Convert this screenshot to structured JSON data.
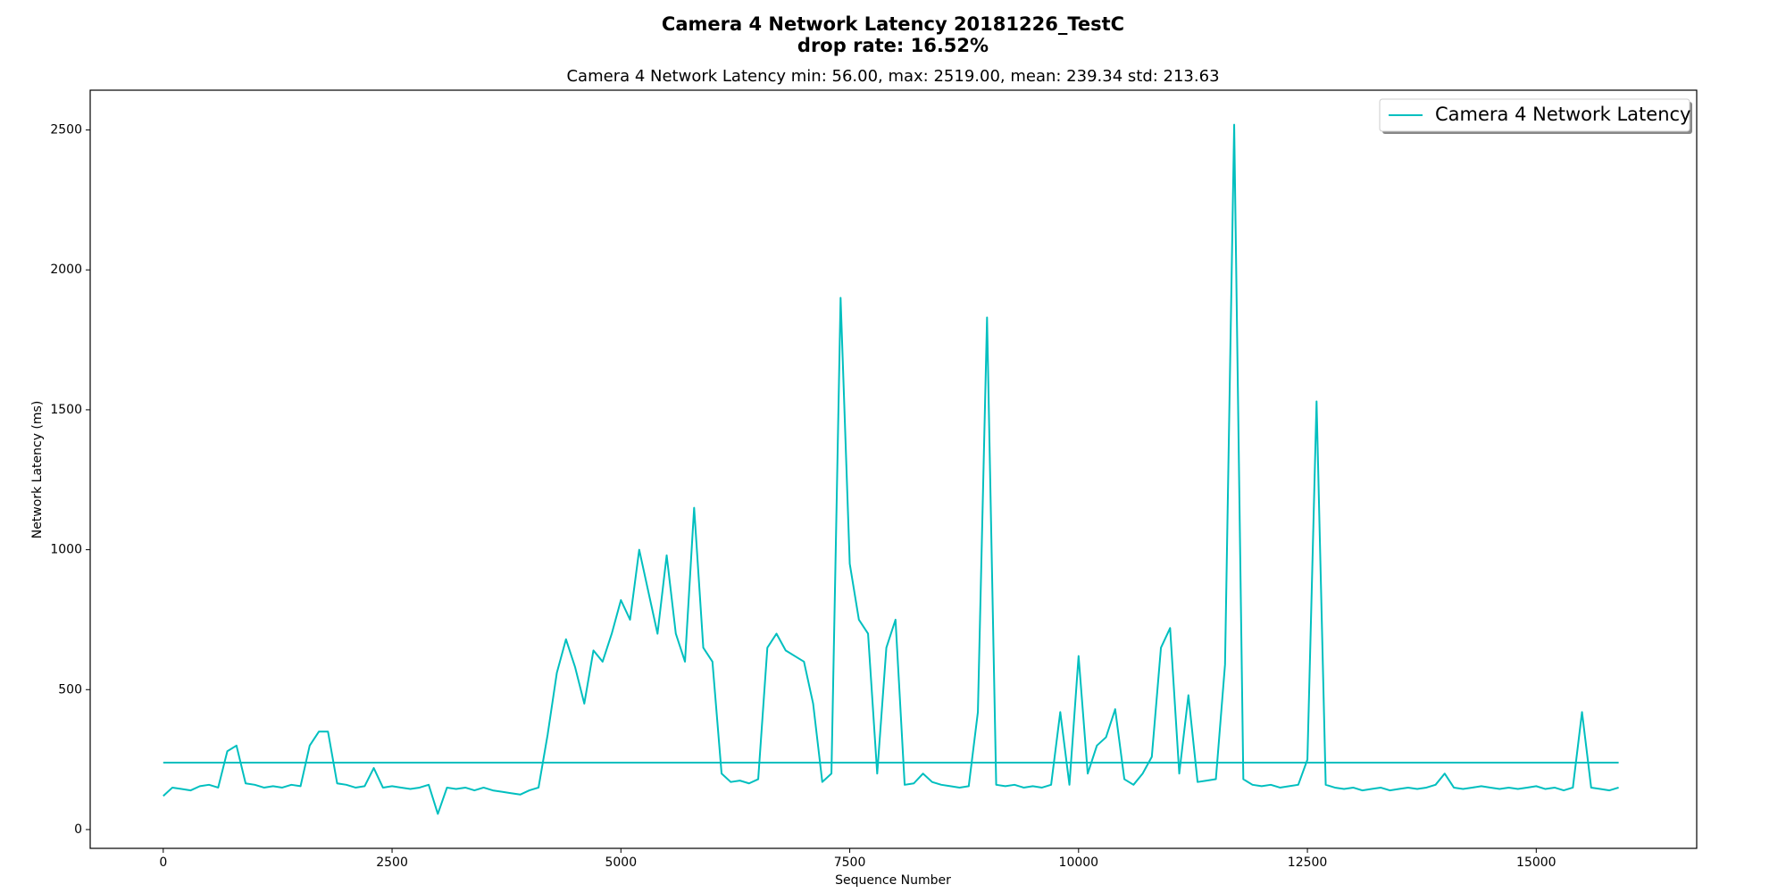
{
  "chart_data": {
    "type": "line",
    "title": "Camera 4 Network Latency 20181226_TestC",
    "subtitle": "drop rate: 16.52%",
    "annotation": "Camera 4 Network Latency min: 56.00, max: 2519.00, mean: 239.34 std: 213.63",
    "xlabel": "Sequence Number",
    "ylabel": "Network Latency (ms)",
    "xlim": [
      -798,
      16753
    ],
    "ylim": [
      -67.15,
      2642.15
    ],
    "xticks": [
      0,
      2500,
      5000,
      7500,
      10000,
      12500,
      15000
    ],
    "yticks": [
      0,
      500,
      1000,
      1500,
      2000,
      2500
    ],
    "legend": "upper right",
    "series": [
      {
        "name": "Camera 4 Network Latency",
        "color": "#00bfbf",
        "x": [
          0,
          100,
          200,
          300,
          400,
          500,
          600,
          700,
          800,
          900,
          1000,
          1100,
          1200,
          1300,
          1400,
          1500,
          1600,
          1700,
          1800,
          1900,
          2000,
          2100,
          2200,
          2300,
          2400,
          2500,
          2600,
          2700,
          2800,
          2900,
          3000,
          3100,
          3200,
          3300,
          3400,
          3500,
          3600,
          3700,
          3800,
          3900,
          4000,
          4100,
          4200,
          4300,
          4400,
          4500,
          4600,
          4700,
          4800,
          4900,
          5000,
          5100,
          5200,
          5300,
          5400,
          5500,
          5600,
          5700,
          5800,
          5900,
          6000,
          6100,
          6200,
          6300,
          6400,
          6500,
          6600,
          6700,
          6800,
          6900,
          7000,
          7100,
          7200,
          7300,
          7400,
          7500,
          7600,
          7700,
          7800,
          7900,
          8000,
          8100,
          8200,
          8300,
          8400,
          8500,
          8600,
          8700,
          8800,
          8900,
          9000,
          9100,
          9200,
          9300,
          9400,
          9500,
          9600,
          9700,
          9800,
          9900,
          10000,
          10100,
          10200,
          10300,
          10400,
          10500,
          10600,
          10700,
          10800,
          10900,
          11000,
          11100,
          11200,
          11300,
          11400,
          11500,
          11600,
          11700,
          11800,
          11900,
          12000,
          12100,
          12200,
          12300,
          12400,
          12500,
          12600,
          12700,
          12800,
          12900,
          13000,
          13100,
          13200,
          13300,
          13400,
          13500,
          13600,
          13700,
          13800,
          13900,
          14000,
          14100,
          14200,
          14300,
          14400,
          14500,
          14600,
          14700,
          14800,
          14900,
          15000,
          15100,
          15200,
          15300,
          15400,
          15500,
          15600,
          15700,
          15800,
          15900
        ],
        "values": [
          120,
          150,
          145,
          140,
          155,
          160,
          150,
          280,
          300,
          165,
          160,
          150,
          155,
          150,
          160,
          155,
          300,
          350,
          350,
          165,
          160,
          150,
          155,
          220,
          150,
          155,
          150,
          145,
          150,
          160,
          56,
          150,
          145,
          150,
          140,
          150,
          140,
          135,
          130,
          125,
          140,
          150,
          340,
          560,
          680,
          580,
          450,
          640,
          600,
          700,
          820,
          750,
          1000,
          850,
          700,
          980,
          700,
          600,
          1150,
          650,
          600,
          200,
          170,
          175,
          165,
          180,
          650,
          700,
          640,
          620,
          600,
          450,
          170,
          200,
          1900,
          950,
          750,
          700,
          200,
          650,
          750,
          160,
          165,
          200,
          170,
          160,
          155,
          150,
          155,
          420,
          1830,
          160,
          155,
          160,
          150,
          155,
          150,
          160,
          420,
          160,
          620,
          200,
          300,
          330,
          430,
          180,
          160,
          200,
          260,
          650,
          720,
          200,
          480,
          170,
          175,
          180,
          590,
          2519,
          180,
          160,
          155,
          160,
          150,
          155,
          160,
          250,
          1530,
          160,
          150,
          145,
          150,
          140,
          145,
          150,
          140,
          145,
          150,
          145,
          150,
          160,
          200,
          150,
          145,
          150,
          155,
          150,
          145,
          150,
          145,
          150,
          155,
          145,
          150,
          140,
          150,
          420,
          150,
          145,
          140,
          150
        ]
      },
      {
        "color": "#00bfbf",
        "x": [
          0,
          15900
        ],
        "values": [
          239.34,
          239.34
        ]
      }
    ]
  }
}
